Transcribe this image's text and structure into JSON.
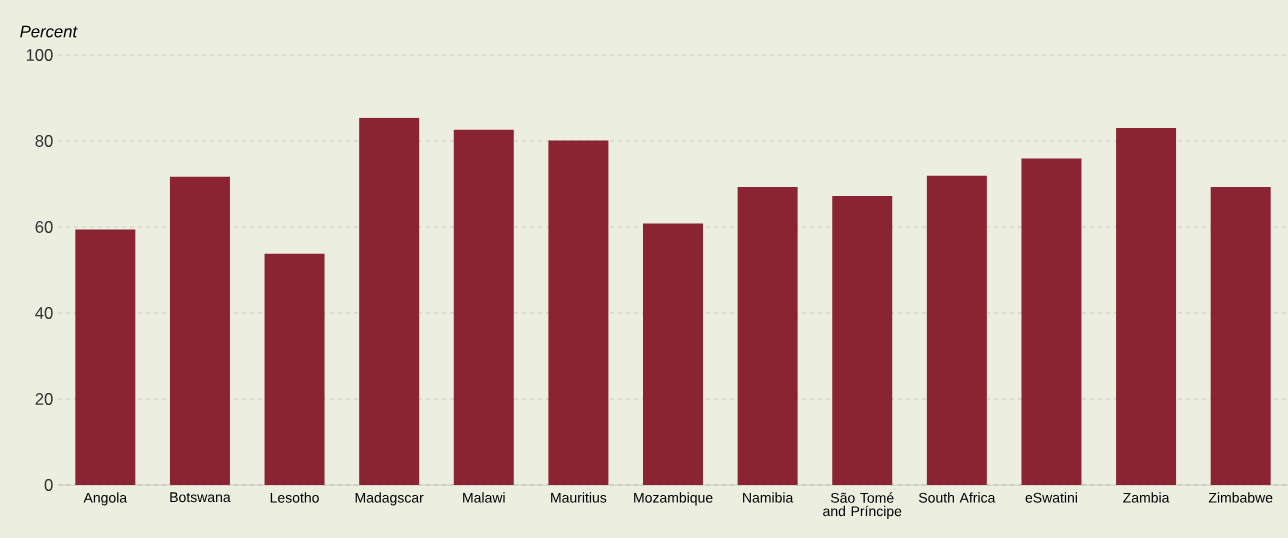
{
  "chart_data": {
    "type": "bar",
    "ylabel": "*Percent*",
    "categories": [
      "Angola",
      "Botswana",
      "Lesotho",
      "Madagscar",
      "Malawi",
      "Mauritius",
      "Mozambique",
      "Namibia",
      "São Tomé and Príncipe",
      "South Africa",
      "eSwatini",
      "Zambia",
      "Zimbabwe"
    ],
    "values": [
      59.4,
      71.7,
      53.8,
      85.4,
      82.6,
      80.1,
      60.8,
      69.3,
      67.2,
      71.9,
      75.9,
      83.0,
      69.3
    ],
    "color": "#8a2332",
    "ylim": [
      0,
      100
    ],
    "yticks": [
      0,
      20,
      40,
      60,
      80,
      100
    ],
    "grid": "y"
  }
}
